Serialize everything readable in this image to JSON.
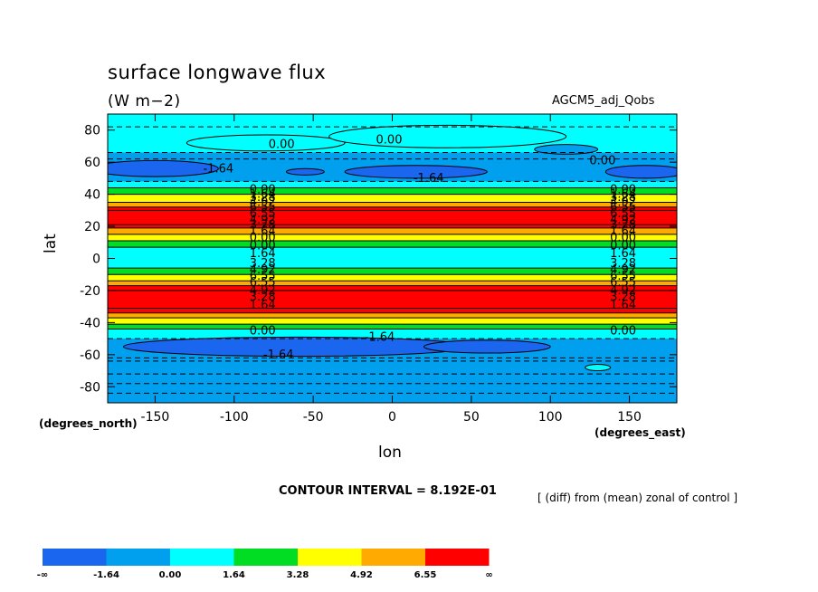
{
  "chart_data": {
    "type": "contour",
    "title": "surface longwave flux",
    "units": "(W m−2)",
    "model_label": "AGCM5_adj_Qobs",
    "xlabel": "lon",
    "ylabel": "lat",
    "x_units_label": "(degrees_east)",
    "y_units_label": "(degrees_north)",
    "xlim": [
      -180,
      180
    ],
    "ylim": [
      -90,
      90
    ],
    "x_ticks": [
      -150,
      -100,
      -50,
      0,
      50,
      100,
      150
    ],
    "y_ticks": [
      80,
      60,
      40,
      20,
      0,
      -20,
      -40,
      -60,
      -80
    ],
    "contour_interval_text": "CONTOUR INTERVAL = 8.192E-01",
    "note": "[ (diff) from (mean) zonal of control ]",
    "bands": [
      {
        "lat_top": 90,
        "lat_bot": 66,
        "level": 2
      },
      {
        "lat_top": 66,
        "lat_bot": 48,
        "level": 1
      },
      {
        "lat_top": 48,
        "lat_bot": 44,
        "level": 2
      },
      {
        "lat_top": 44,
        "lat_bot": 40,
        "level": 3
      },
      {
        "lat_top": 40,
        "lat_bot": 35,
        "level": 4
      },
      {
        "lat_top": 35,
        "lat_bot": 32,
        "level": 5
      },
      {
        "lat_top": 32,
        "lat_bot": 30,
        "level": 6
      },
      {
        "lat_top": 30,
        "lat_bot": 21,
        "level": 7
      },
      {
        "lat_top": 21,
        "lat_bot": 19,
        "level": 6
      },
      {
        "lat_top": 19,
        "lat_bot": 15,
        "level": 5
      },
      {
        "lat_top": 15,
        "lat_bot": 11,
        "level": 4
      },
      {
        "lat_top": 11,
        "lat_bot": 7,
        "level": 3
      },
      {
        "lat_top": 7,
        "lat_bot": -6,
        "level": 2
      },
      {
        "lat_top": -6,
        "lat_bot": -10,
        "level": 3
      },
      {
        "lat_top": -10,
        "lat_bot": -14,
        "level": 4
      },
      {
        "lat_top": -14,
        "lat_bot": -17,
        "level": 5
      },
      {
        "lat_top": -17,
        "lat_bot": -20,
        "level": 6
      },
      {
        "lat_top": -20,
        "lat_bot": -31,
        "level": 7
      },
      {
        "lat_top": -31,
        "lat_bot": -34,
        "level": 6
      },
      {
        "lat_top": -34,
        "lat_bot": -37,
        "level": 5
      },
      {
        "lat_top": -37,
        "lat_bot": -41,
        "level": 4
      },
      {
        "lat_top": -41,
        "lat_bot": -44,
        "level": 3
      },
      {
        "lat_top": -44,
        "lat_bot": -50,
        "level": 2
      },
      {
        "lat_top": -50,
        "lat_bot": -62,
        "level": 1
      },
      {
        "lat_top": -62,
        "lat_bot": -90,
        "level": 1
      }
    ],
    "contour_labels_left": [
      "0.00",
      "1.64",
      "3.28",
      "4.92",
      "6.55",
      "6.55",
      "4.92",
      "3.28",
      "1.64",
      "0.00",
      "0.00",
      "1.64",
      "3.28",
      "4.92",
      "6.55",
      "6.55",
      "4.92",
      "3.28",
      "1.64",
      "0.00"
    ],
    "contour_labels_right": [
      "0.00",
      "1.64",
      "3.28",
      "4.92",
      "6.55",
      "6.55",
      "4.92",
      "3.28",
      "1.64",
      "0.00",
      "0.00",
      "1.64",
      "3.28",
      "4.92",
      "6.55",
      "6.55",
      "4.92",
      "3.28",
      "1.64",
      "0.00"
    ],
    "contour_label_lats": [
      43,
      40,
      38,
      35,
      32,
      28,
      24,
      21,
      17,
      13,
      8,
      3,
      -3,
      -7,
      -11,
      -15,
      -20,
      -24,
      -29,
      -45
    ],
    "extra_labels": [
      {
        "text": "0.00",
        "lon": -70,
        "lat": 71
      },
      {
        "text": "0.00",
        "lon": -2,
        "lat": 74
      },
      {
        "text": "0.00",
        "lon": 133,
        "lat": 61
      },
      {
        "text": "-1.64",
        "lon": -110,
        "lat": 56
      },
      {
        "text": "-1.64",
        "lon": 23,
        "lat": 50
      },
      {
        "text": "-1.64",
        "lon": -8,
        "lat": -49
      },
      {
        "text": "-1.64",
        "lon": -72,
        "lat": -60
      }
    ],
    "legend": {
      "colors": [
        "#1a66ee",
        "#00a0ee",
        "#00ffff",
        "#00dd22",
        "#ffff00",
        "#ffaa00",
        "#ff0000"
      ],
      "labels": [
        "-∞",
        "-1.64",
        "0.00",
        "1.64",
        "3.28",
        "4.92",
        "6.55",
        "∞"
      ]
    },
    "level_colors": [
      "#1a66ee",
      "#00a0ee",
      "#00ffff",
      "#00dd22",
      "#ffff00",
      "#ffaa00",
      "#ff0000",
      "#ff0000"
    ]
  }
}
